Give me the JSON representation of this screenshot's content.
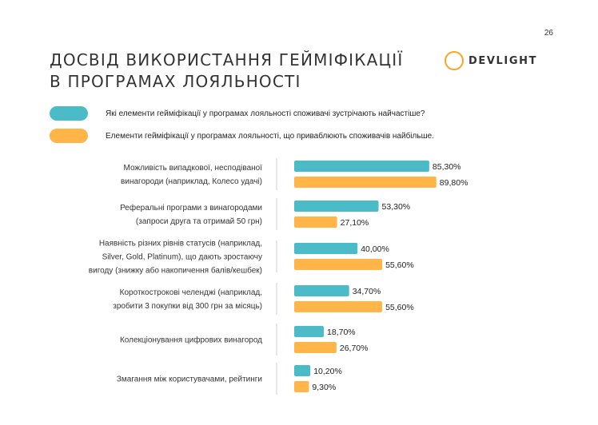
{
  "page_number": "26",
  "title": [
    "ДОСВІД ВИКОРИСТАННЯ ГЕЙМІФІКАЦІЇ",
    "В ПРОГРАМАХ ЛОЯЛЬНОСТІ"
  ],
  "logo": {
    "text": "DEVLIGHT",
    "color": "#f5a623"
  },
  "colors": {
    "teal": "#4bbcc7",
    "orange": "#ffb547",
    "divider": "#cccccc"
  },
  "chart_data": {
    "type": "bar",
    "orientation": "horizontal",
    "legend_position": "top",
    "grid": false,
    "xlim": [
      0,
      100
    ],
    "categories": [
      [
        "Можливість випадкової, несподіваної",
        "винагороди (наприклад, Колесо удачі)"
      ],
      [
        "Реферальні програми з винагородами",
        "(запроси друга та отримай 50 грн)"
      ],
      [
        "Наявність різних рівнів статусів (наприклад,",
        "Silver, Gold, Platinum), що дають зростаючу",
        "вигоду (знижку або накопичення балів/кешбек)"
      ],
      [
        "Короткострокові челенджі (наприклад,",
        "зробити 3 покупки від 300 грн за місяць)"
      ],
      [
        "Колекціонування цифрових винагород"
      ],
      [
        "Змагання між користувачами, рейтинги"
      ]
    ],
    "series": [
      {
        "name": "Які елементи гейміфікації у програмах лояльності споживачі зустрічають найчастіше?",
        "color": "#4bbcc7",
        "values": [
          85.3,
          53.3,
          40.0,
          34.7,
          18.7,
          10.2
        ],
        "labels": [
          "85,30%",
          "53,30%",
          "40,00%",
          "34,70%",
          "18,70%",
          "10,20%"
        ]
      },
      {
        "name": "Елементи гейміфікації у програмах лояльності, що приваблюють споживачів найбільше.",
        "color": "#ffb547",
        "values": [
          89.8,
          27.1,
          55.6,
          55.6,
          26.7,
          9.3
        ],
        "labels": [
          "89,80%",
          "27,10%",
          "55,60%",
          "55,60%",
          "26,70%",
          "9,30%"
        ]
      }
    ]
  }
}
